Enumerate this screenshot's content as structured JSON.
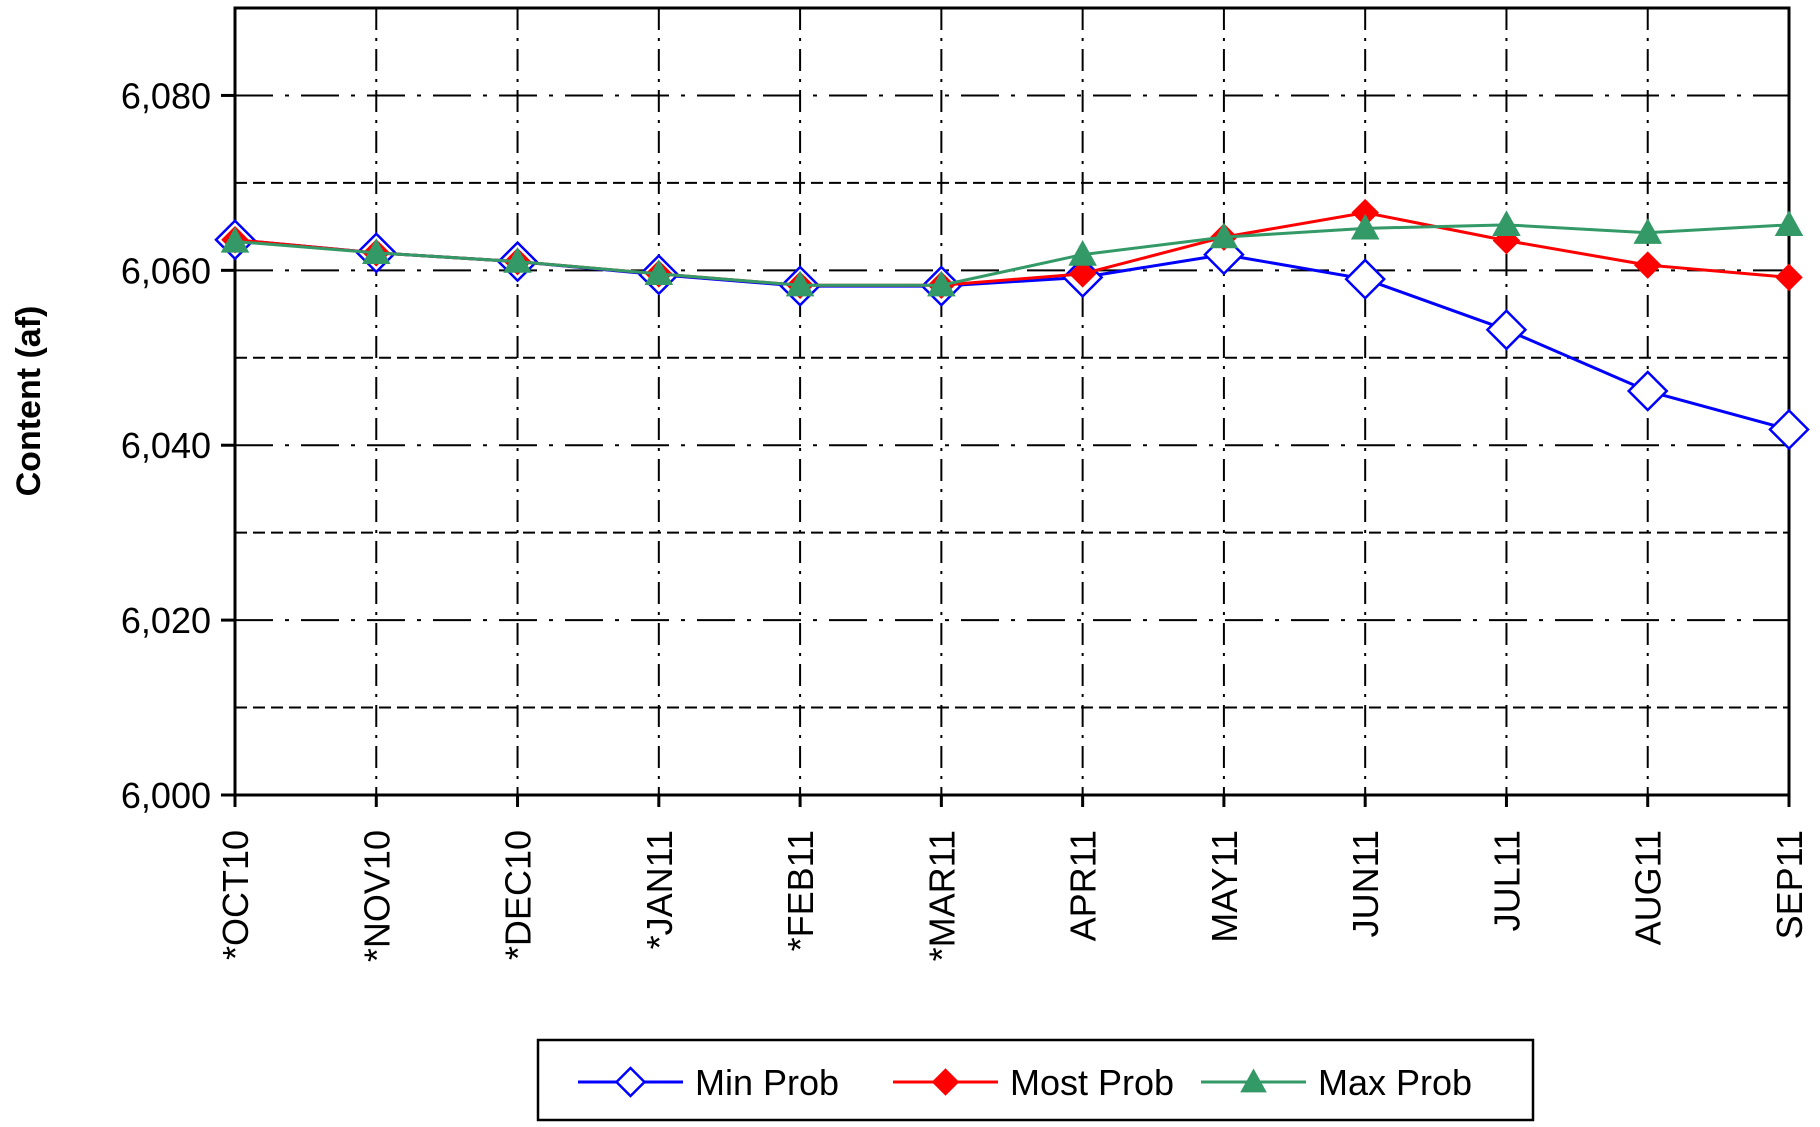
{
  "chart_data": {
    "type": "line",
    "title": "",
    "xlabel": "",
    "ylabel": "Content (af)",
    "ylim": [
      6000,
      6090
    ],
    "yticks": [
      6000,
      6020,
      6040,
      6060,
      6080
    ],
    "ytick_labels": [
      "6,000",
      "6,020",
      "6,040",
      "6,060",
      "6,080"
    ],
    "categories": [
      "*OCT10",
      "*NOV10",
      "*DEC10",
      "*JAN11",
      "*FEB11",
      "*MAR11",
      "APR11",
      "MAY11",
      "JUN11",
      "JUL11",
      "AUG11",
      "SEP11"
    ],
    "grid": true,
    "legend_position": "bottom",
    "series": [
      {
        "name": "Min Prob",
        "color": "#0000ff",
        "marker": "diamond-open",
        "values": [
          6063.5,
          6062.0,
          6061.0,
          6059.5,
          6058.2,
          6058.2,
          6059.2,
          6061.8,
          6059.0,
          6053.2,
          6046.2,
          6041.8
        ]
      },
      {
        "name": "Most Prob",
        "color": "#ff0000",
        "marker": "diamond-filled",
        "values": [
          6063.5,
          6062.0,
          6061.0,
          6059.6,
          6058.3,
          6058.3,
          6059.6,
          6063.8,
          6066.6,
          6063.4,
          6060.6,
          6059.2
        ]
      },
      {
        "name": "Max Prob",
        "color": "#339966",
        "marker": "triangle-filled",
        "values": [
          6063.3,
          6062.0,
          6061.0,
          6059.6,
          6058.3,
          6058.3,
          6061.8,
          6063.8,
          6064.8,
          6065.2,
          6064.3,
          6065.2
        ]
      }
    ]
  }
}
